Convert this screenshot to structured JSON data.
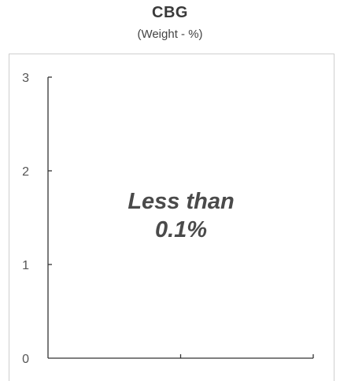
{
  "chart_data": {
    "type": "bar",
    "title": "CBG",
    "subtitle": "(Weight - %)",
    "xlabel": "",
    "ylabel": "",
    "categories": [],
    "values": [],
    "ylim": [
      0,
      3
    ],
    "yticks": [
      "0",
      "1",
      "2",
      "3"
    ],
    "annotation_line1": "Less than",
    "annotation_line2": "0.1%",
    "grid": false,
    "colors": {
      "axis": "#333333",
      "text": "#4a4a4a",
      "frame": "#cfcfcf"
    }
  }
}
